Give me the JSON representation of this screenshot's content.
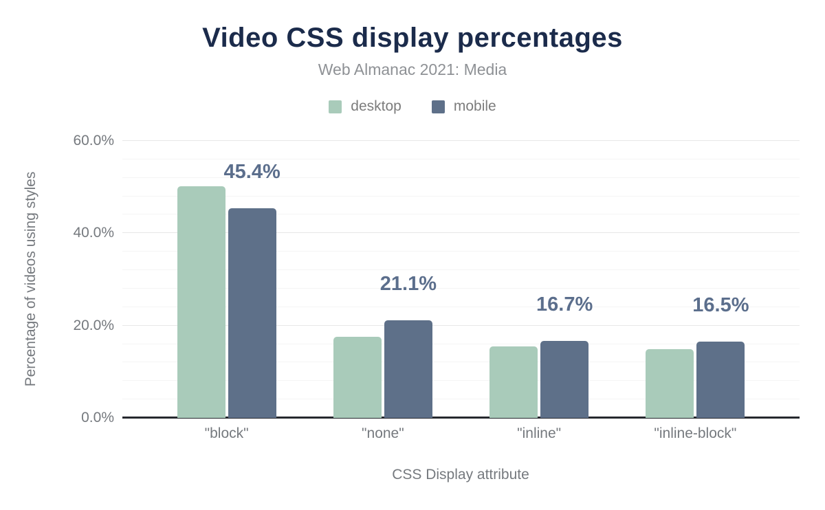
{
  "header": {
    "title": "Video CSS display percentages",
    "subtitle": "Web Almanac 2021: Media"
  },
  "chart_data": {
    "type": "bar",
    "title": "Video CSS display percentages",
    "subtitle": "Web Almanac 2021: Media",
    "categories": [
      "\"block\"",
      "\"none\"",
      "\"inline\"",
      "\"inline-block\""
    ],
    "series": [
      {
        "name": "desktop",
        "color": "#a9cbba",
        "values": [
          50.2,
          17.6,
          15.5,
          14.9
        ]
      },
      {
        "name": "mobile",
        "color": "#5e7089",
        "values": [
          45.4,
          21.1,
          16.7,
          16.5
        ]
      }
    ],
    "data_labels": {
      "labeled_series": "mobile",
      "values": [
        "45.4%",
        "21.1%",
        "16.7%",
        "16.5%"
      ]
    },
    "xlabel": "CSS Display attribute",
    "ylabel": "Percentage of videos using styles",
    "yticks": [
      {
        "value": 0,
        "label": "0.0%"
      },
      {
        "value": 20,
        "label": "20.0%"
      },
      {
        "value": 40,
        "label": "40.0%"
      },
      {
        "value": 60,
        "label": "60.0%"
      }
    ],
    "ylim": [
      0,
      60
    ],
    "minor_grid_step": 4,
    "grid": true,
    "legend_position": "top"
  },
  "colors": {
    "title": "#1b2b4b",
    "subtitle": "#8e9195",
    "axis_text": "#75797e",
    "data_label": "#5b6e8c",
    "grid_major": "#e7e7e7",
    "grid_minor": "#f4f4f4",
    "baseline": "#25282e",
    "desktop": "#a9cbba",
    "mobile": "#5e7089",
    "background": "#ffffff"
  }
}
